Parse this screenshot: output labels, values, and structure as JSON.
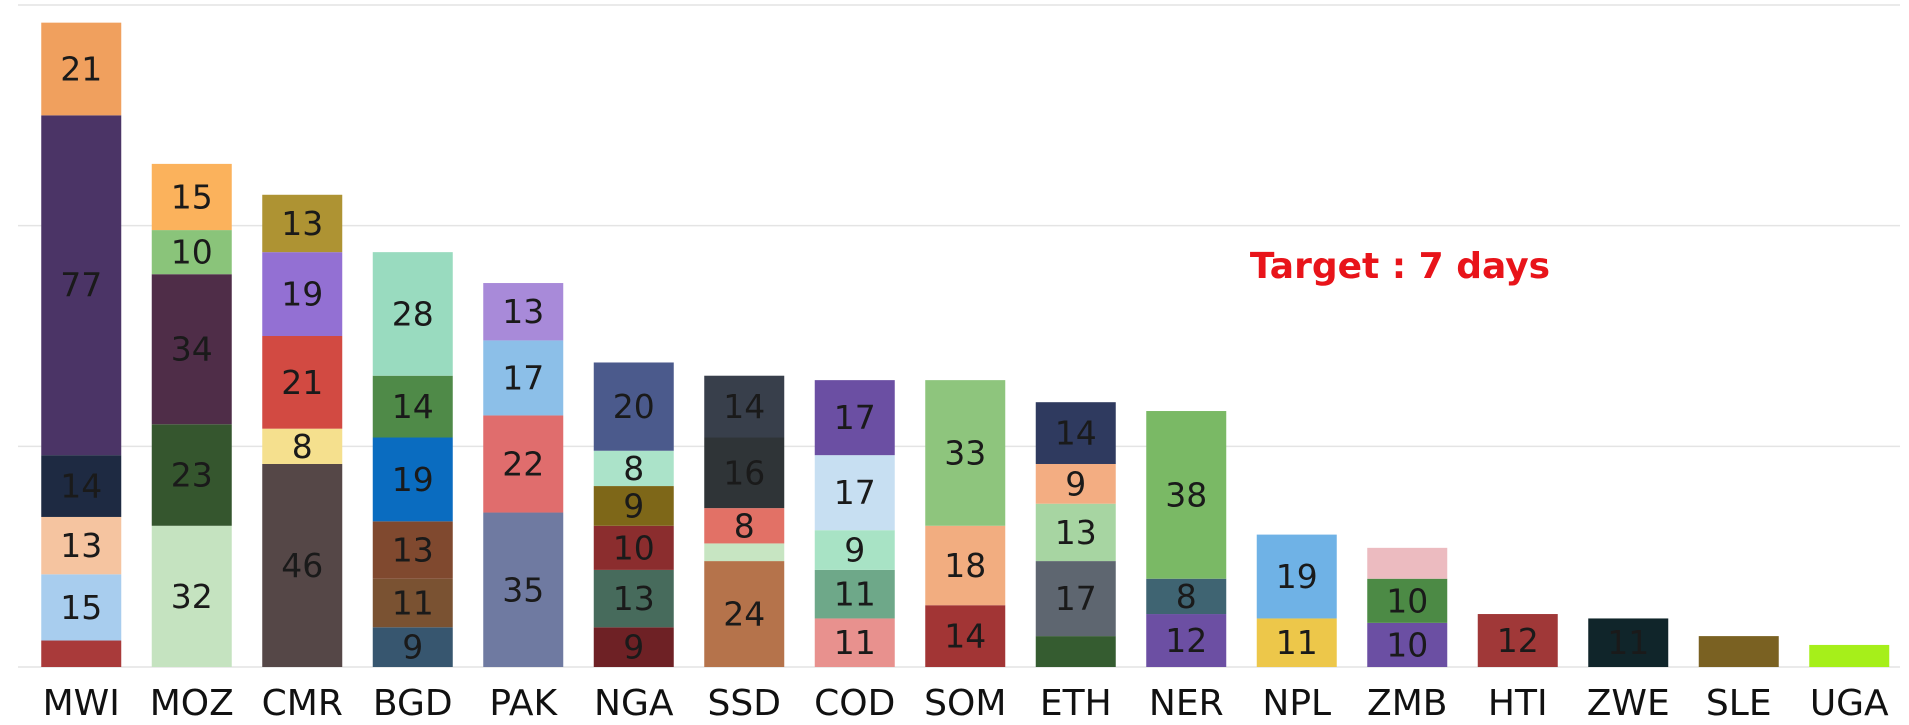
{
  "chart_data": {
    "type": "stacked_bar",
    "annotation": "Target : 7 days",
    "categories": [
      "MWI",
      "MOZ",
      "CMR",
      "BGD",
      "PAK",
      "NGA",
      "SSD",
      "COD",
      "SOM",
      "ETH",
      "NER",
      "NPL",
      "ZMB",
      "HTI",
      "ZWE",
      "SLE",
      "UGA"
    ],
    "stacks": [
      [
        {
          "value": 6,
          "color": "#a93a3a"
        },
        {
          "value": 15,
          "color": "#a8cdee"
        },
        {
          "value": 13,
          "color": "#f5c4a0"
        },
        {
          "value": 14,
          "color": "#1e2a42"
        },
        {
          "value": 77,
          "color": "#4b3466"
        },
        {
          "value": 21,
          "color": "#f0a05e"
        }
      ],
      [
        {
          "value": 32,
          "color": "#c5e3c0"
        },
        {
          "value": 23,
          "color": "#35562e"
        },
        {
          "value": 34,
          "color": "#4f2d48"
        },
        {
          "value": 10,
          "color": "#8ac47a"
        },
        {
          "value": 15,
          "color": "#fbb25c"
        }
      ],
      [
        {
          "value": 46,
          "color": "#554747"
        },
        {
          "value": 8,
          "color": "#f5e08e"
        },
        {
          "value": 21,
          "color": "#d24a42"
        },
        {
          "value": 19,
          "color": "#9370d3"
        },
        {
          "value": 13,
          "color": "#ae9333"
        }
      ],
      [
        {
          "value": 9,
          "color": "#37566f"
        },
        {
          "value": 11,
          "color": "#7a5232"
        },
        {
          "value": 13,
          "color": "#80492f"
        },
        {
          "value": 19,
          "color": "#0a6cc0"
        },
        {
          "value": 14,
          "color": "#4f8a48"
        },
        {
          "value": 28,
          "color": "#99dbbf"
        }
      ],
      [
        {
          "value": 35,
          "color": "#6f7aa1"
        },
        {
          "value": 22,
          "color": "#e06d6d"
        },
        {
          "value": 17,
          "color": "#8cbfe8"
        },
        {
          "value": 13,
          "color": "#a88ad9"
        }
      ],
      [
        {
          "value": 9,
          "color": "#6e2125"
        },
        {
          "value": 13,
          "color": "#476b5c"
        },
        {
          "value": 10,
          "color": "#8b2d2e"
        },
        {
          "value": 9,
          "color": "#7e6718"
        },
        {
          "value": 8,
          "color": "#abe3c9"
        },
        {
          "value": 20,
          "color": "#4b5a8c"
        }
      ],
      [
        {
          "value": 24,
          "color": "#b5734b"
        },
        {
          "value": 4,
          "color": "#c7e5c2"
        },
        {
          "value": 8,
          "color": "#e27166"
        },
        {
          "value": 16,
          "color": "#2f3437"
        },
        {
          "value": 14,
          "color": "#383f4b"
        }
      ],
      [
        {
          "value": 11,
          "color": "#e8918e"
        },
        {
          "value": 11,
          "color": "#6ea889"
        },
        {
          "value": 9,
          "color": "#a8e3c5"
        },
        {
          "value": 17,
          "color": "#c7dff2"
        },
        {
          "value": 17,
          "color": "#6b4fa3"
        }
      ],
      [
        {
          "value": 14,
          "color": "#a23535"
        },
        {
          "value": 18,
          "color": "#f2ad80"
        },
        {
          "value": 33,
          "color": "#8ec57d"
        }
      ],
      [
        {
          "value": 7,
          "color": "#355c30"
        },
        {
          "value": 17,
          "color": "#5e6670"
        },
        {
          "value": 13,
          "color": "#a7d5a2"
        },
        {
          "value": 9,
          "color": "#f3ad82"
        },
        {
          "value": 14,
          "color": "#2f3a5f"
        }
      ],
      [
        {
          "value": 12,
          "color": "#6c4fa3"
        },
        {
          "value": 8,
          "color": "#3f6472"
        },
        {
          "value": 38,
          "color": "#7ab965"
        }
      ],
      [
        {
          "value": 11,
          "color": "#edc74a"
        },
        {
          "value": 19,
          "color": "#6fb2e6"
        }
      ],
      [
        {
          "value": 10,
          "color": "#6b4fa3"
        },
        {
          "value": 10,
          "color": "#4c8a45"
        },
        {
          "value": 7,
          "color": "#ecbbc0"
        }
      ],
      [
        {
          "value": 12,
          "color": "#a03838"
        }
      ],
      [
        {
          "value": 11,
          "color": "#10252a"
        }
      ],
      [
        {
          "value": 7,
          "color": "#7a6122"
        }
      ],
      [
        {
          "value": 5,
          "color": "#a6ef1a"
        }
      ]
    ],
    "label_min_value": 8,
    "ylim": [
      0,
      150
    ],
    "yticks": [
      0,
      50,
      100,
      150
    ],
    "grid": true
  }
}
